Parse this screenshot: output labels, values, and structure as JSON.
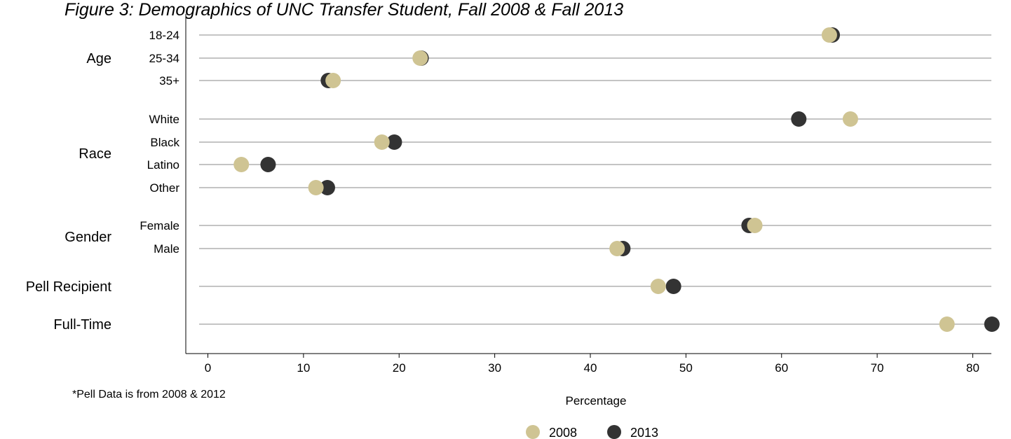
{
  "chart_data": {
    "type": "scatter",
    "title": "Figure 3: Demographics of UNC Transfer Student, Fall 2008 & Fall 2013",
    "xlabel": "Percentage",
    "xlim": [
      0,
      82
    ],
    "xticks": [
      0,
      10,
      20,
      30,
      40,
      50,
      60,
      70,
      80
    ],
    "grid": true,
    "legend_position": "bottom-center",
    "note": "*Pell Data is from 2008 & 2012",
    "groups": [
      {
        "name": "Age",
        "categories": [
          "18-24",
          "25-34",
          "35+"
        ]
      },
      {
        "name": "Race",
        "categories": [
          "White",
          "Black",
          "Latino",
          "Other"
        ]
      },
      {
        "name": "Gender",
        "categories": [
          "Female",
          "Male"
        ]
      },
      {
        "name": "Pell Recipient",
        "categories": [
          ""
        ]
      },
      {
        "name": "Full-Time",
        "categories": [
          ""
        ]
      }
    ],
    "series": [
      {
        "name": "2008",
        "color": "#cfc493",
        "values": [
          65.0,
          22.2,
          13.1,
          67.2,
          18.2,
          3.5,
          11.3,
          57.2,
          42.8,
          47.1,
          77.3
        ]
      },
      {
        "name": "2013",
        "color": "#333333",
        "values": [
          65.3,
          22.3,
          12.6,
          61.8,
          19.5,
          6.3,
          12.5,
          56.6,
          43.4,
          48.7,
          82.0
        ]
      }
    ]
  }
}
